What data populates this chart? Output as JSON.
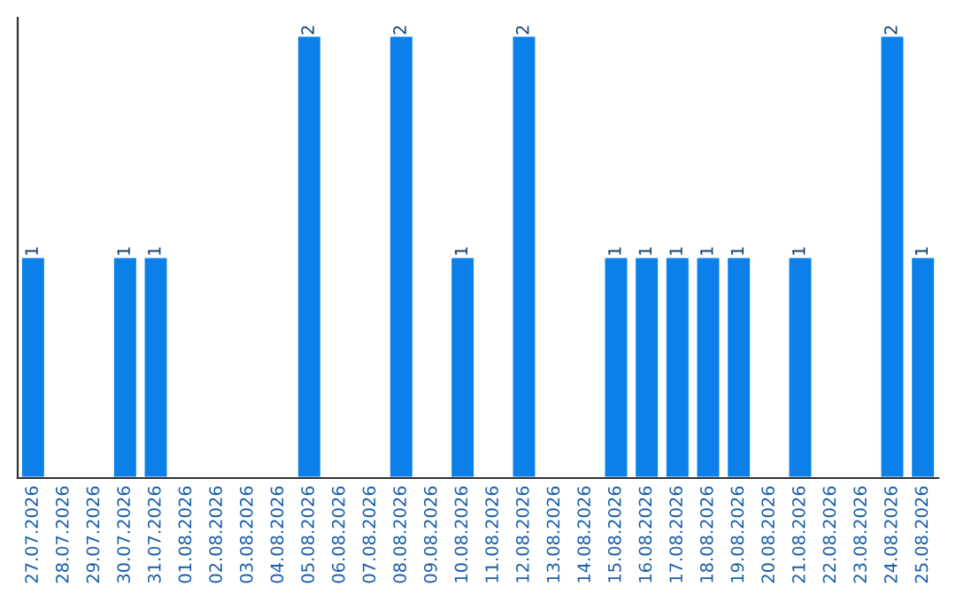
{
  "chart_data": {
    "type": "bar",
    "categories": [
      "27.07.2026",
      "28.07.2026",
      "29.07.2026",
      "30.07.2026",
      "31.07.2026",
      "01.08.2026",
      "02.08.2026",
      "03.08.2026",
      "04.08.2026",
      "05.08.2026",
      "06.08.2026",
      "07.08.2026",
      "08.08.2026",
      "09.08.2026",
      "10.08.2026",
      "11.08.2026",
      "12.08.2026",
      "13.08.2026",
      "14.08.2026",
      "15.08.2026",
      "16.08.2026",
      "17.08.2026",
      "18.08.2026",
      "19.08.2026",
      "20.08.2026",
      "21.08.2026",
      "22.08.2026",
      "23.08.2026",
      "24.08.2026",
      "25.08.2026"
    ],
    "values": [
      1,
      null,
      null,
      1,
      1,
      null,
      null,
      null,
      null,
      2,
      null,
      null,
      2,
      null,
      1,
      null,
      2,
      null,
      null,
      1,
      1,
      1,
      1,
      1,
      null,
      1,
      null,
      null,
      2,
      1
    ],
    "color": "#0a80e8",
    "data_labels": true,
    "grid": false,
    "legend": false
  }
}
